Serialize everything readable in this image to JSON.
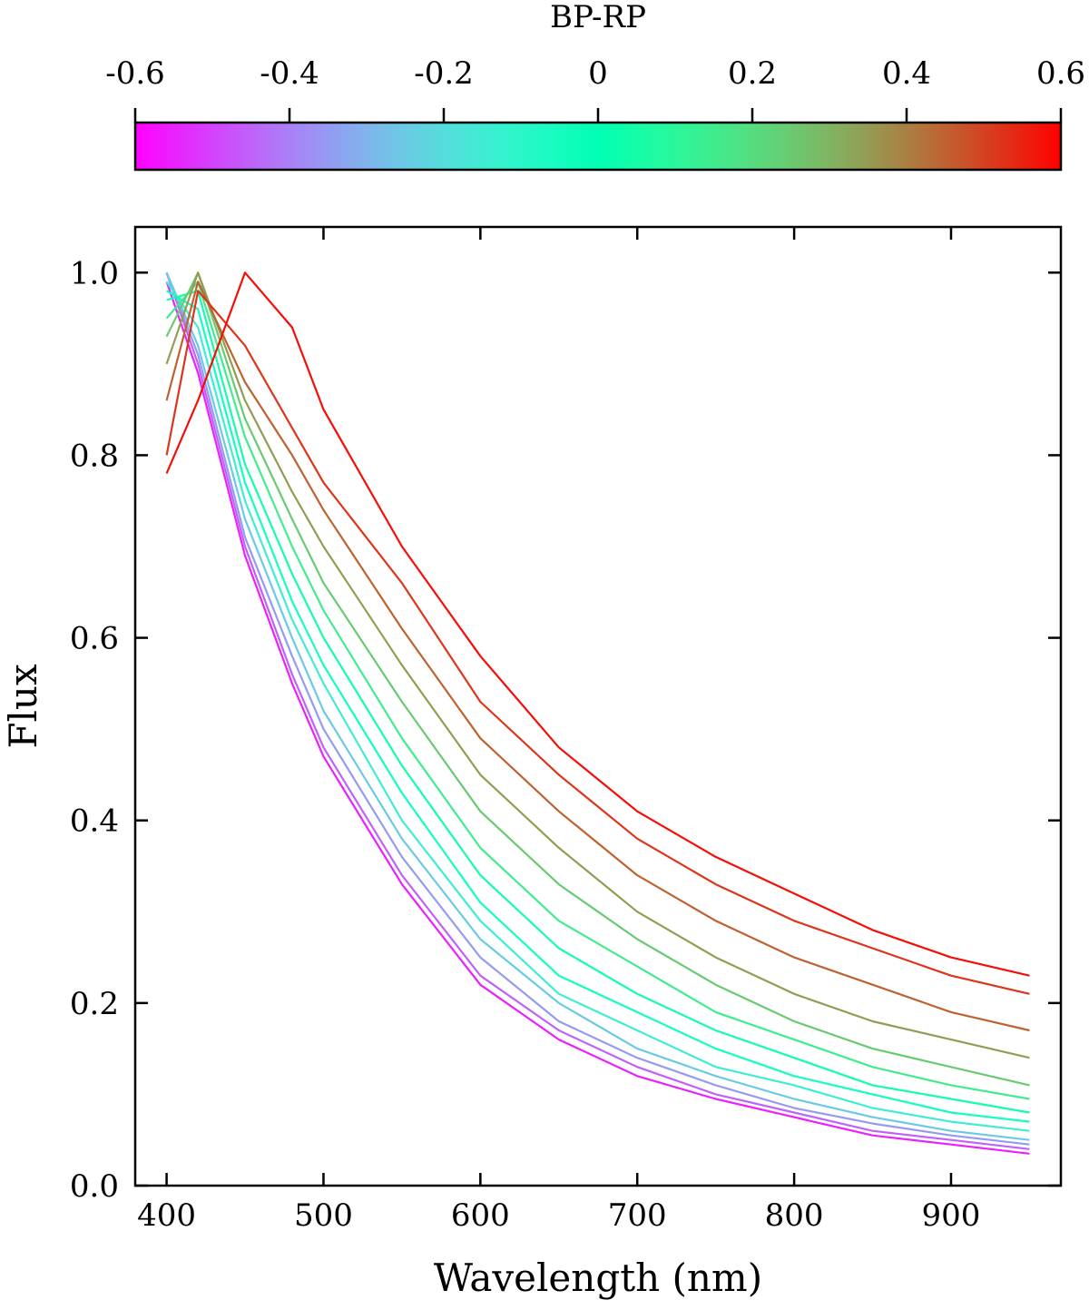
{
  "chart_data": {
    "type": "line",
    "xlabel": "Wavelength (nm)",
    "ylabel": "Flux",
    "xlim": [
      380,
      970
    ],
    "ylim": [
      0.0,
      1.05
    ],
    "xticks": [
      400,
      500,
      600,
      700,
      800,
      900
    ],
    "xtick_labels": [
      "400",
      "500",
      "600",
      "700",
      "800",
      "900"
    ],
    "yticks": [
      0.0,
      0.2,
      0.4,
      0.6,
      0.8,
      1.0
    ],
    "ytick_labels": [
      "0.0",
      "0.2",
      "0.4",
      "0.6",
      "0.8",
      "1.0"
    ],
    "grid": false,
    "legend": "none",
    "colorbar": {
      "label": "BP-RP",
      "range": [
        -0.6,
        0.6
      ],
      "ticks": [
        -0.6,
        -0.4,
        -0.2,
        0,
        0.2,
        0.4,
        0.6
      ],
      "tick_labels": [
        "-0.6",
        "-0.4",
        "-0.2",
        "0",
        "0.2",
        "0.4",
        "0.6"
      ],
      "colormap": "rainbow",
      "placement": "top"
    },
    "series": [
      {
        "name": "BP-RP 0.58",
        "bp_rp": 0.58,
        "x": [
          400,
          420,
          450,
          480,
          500,
          550,
          600,
          650,
          700,
          750,
          800,
          850,
          900,
          950
        ],
        "y": [
          0.78,
          0.86,
          1.0,
          0.94,
          0.85,
          0.7,
          0.58,
          0.48,
          0.41,
          0.36,
          0.32,
          0.28,
          0.25,
          0.23
        ]
      },
      {
        "name": "BP-RP 0.52",
        "bp_rp": 0.52,
        "x": [
          400,
          420,
          450,
          480,
          500,
          550,
          600,
          650,
          700,
          750,
          800,
          850,
          900,
          950
        ],
        "y": [
          0.8,
          0.98,
          0.92,
          0.83,
          0.77,
          0.66,
          0.53,
          0.45,
          0.38,
          0.33,
          0.29,
          0.26,
          0.23,
          0.21
        ]
      },
      {
        "name": "BP-RP 0.45",
        "bp_rp": 0.45,
        "x": [
          400,
          420,
          450,
          480,
          500,
          550,
          600,
          650,
          700,
          750,
          800,
          850,
          900,
          950
        ],
        "y": [
          0.86,
          0.99,
          0.88,
          0.8,
          0.74,
          0.61,
          0.49,
          0.41,
          0.34,
          0.29,
          0.25,
          0.22,
          0.19,
          0.17
        ]
      },
      {
        "name": "BP-RP 0.35",
        "bp_rp": 0.35,
        "x": [
          400,
          420,
          450,
          480,
          500,
          550,
          600,
          650,
          700,
          750,
          800,
          850,
          900,
          950
        ],
        "y": [
          0.9,
          1.0,
          0.86,
          0.76,
          0.7,
          0.57,
          0.45,
          0.37,
          0.3,
          0.25,
          0.21,
          0.18,
          0.16,
          0.14
        ]
      },
      {
        "name": "BP-RP 0.25",
        "bp_rp": 0.25,
        "x": [
          400,
          420,
          450,
          480,
          500,
          550,
          600,
          650,
          700,
          750,
          800,
          850,
          900,
          950
        ],
        "y": [
          0.93,
          1.0,
          0.84,
          0.73,
          0.66,
          0.53,
          0.41,
          0.33,
          0.27,
          0.22,
          0.18,
          0.15,
          0.13,
          0.11
        ]
      },
      {
        "name": "BP-RP 0.15",
        "bp_rp": 0.15,
        "x": [
          400,
          420,
          450,
          480,
          500,
          550,
          600,
          650,
          700,
          750,
          800,
          850,
          900,
          950
        ],
        "y": [
          0.95,
          0.99,
          0.82,
          0.7,
          0.63,
          0.49,
          0.37,
          0.29,
          0.24,
          0.19,
          0.16,
          0.13,
          0.11,
          0.095
        ]
      },
      {
        "name": "BP-RP 0.05",
        "bp_rp": 0.05,
        "x": [
          400,
          420,
          450,
          480,
          500,
          550,
          600,
          650,
          700,
          750,
          800,
          850,
          900,
          950
        ],
        "y": [
          0.97,
          0.98,
          0.79,
          0.67,
          0.6,
          0.46,
          0.34,
          0.26,
          0.21,
          0.17,
          0.14,
          0.11,
          0.095,
          0.08
        ]
      },
      {
        "name": "BP-RP -0.05",
        "bp_rp": -0.05,
        "x": [
          400,
          420,
          450,
          480,
          500,
          550,
          600,
          650,
          700,
          750,
          800,
          850,
          900,
          950
        ],
        "y": [
          0.98,
          0.96,
          0.77,
          0.64,
          0.57,
          0.43,
          0.31,
          0.23,
          0.19,
          0.15,
          0.12,
          0.1,
          0.08,
          0.07
        ]
      },
      {
        "name": "BP-RP -0.15",
        "bp_rp": -0.15,
        "x": [
          400,
          420,
          450,
          480,
          500,
          550,
          600,
          650,
          700,
          750,
          800,
          850,
          900,
          950
        ],
        "y": [
          0.99,
          0.94,
          0.75,
          0.62,
          0.55,
          0.4,
          0.29,
          0.21,
          0.17,
          0.13,
          0.11,
          0.085,
          0.07,
          0.06
        ]
      },
      {
        "name": "BP-RP -0.25",
        "bp_rp": -0.25,
        "x": [
          400,
          420,
          450,
          480,
          500,
          550,
          600,
          650,
          700,
          750,
          800,
          850,
          900,
          950
        ],
        "y": [
          1.0,
          0.92,
          0.73,
          0.6,
          0.52,
          0.38,
          0.27,
          0.2,
          0.15,
          0.12,
          0.095,
          0.075,
          0.06,
          0.05
        ]
      },
      {
        "name": "BP-RP -0.35",
        "bp_rp": -0.35,
        "x": [
          400,
          420,
          450,
          480,
          500,
          550,
          600,
          650,
          700,
          750,
          800,
          850,
          900,
          950
        ],
        "y": [
          1.0,
          0.91,
          0.71,
          0.58,
          0.5,
          0.36,
          0.25,
          0.18,
          0.14,
          0.11,
          0.085,
          0.068,
          0.055,
          0.045
        ]
      },
      {
        "name": "BP-RP -0.45",
        "bp_rp": -0.45,
        "x": [
          400,
          420,
          450,
          480,
          500,
          550,
          600,
          650,
          700,
          750,
          800,
          850,
          900,
          950
        ],
        "y": [
          1.0,
          0.9,
          0.7,
          0.56,
          0.48,
          0.34,
          0.23,
          0.17,
          0.13,
          0.1,
          0.08,
          0.06,
          0.05,
          0.04
        ]
      },
      {
        "name": "BP-RP -0.55",
        "bp_rp": -0.55,
        "x": [
          400,
          420,
          450,
          480,
          500,
          550,
          600,
          650,
          700,
          750,
          800,
          850,
          900,
          950
        ],
        "y": [
          0.99,
          0.89,
          0.69,
          0.55,
          0.47,
          0.33,
          0.22,
          0.16,
          0.12,
          0.095,
          0.075,
          0.055,
          0.045,
          0.035
        ]
      }
    ]
  }
}
